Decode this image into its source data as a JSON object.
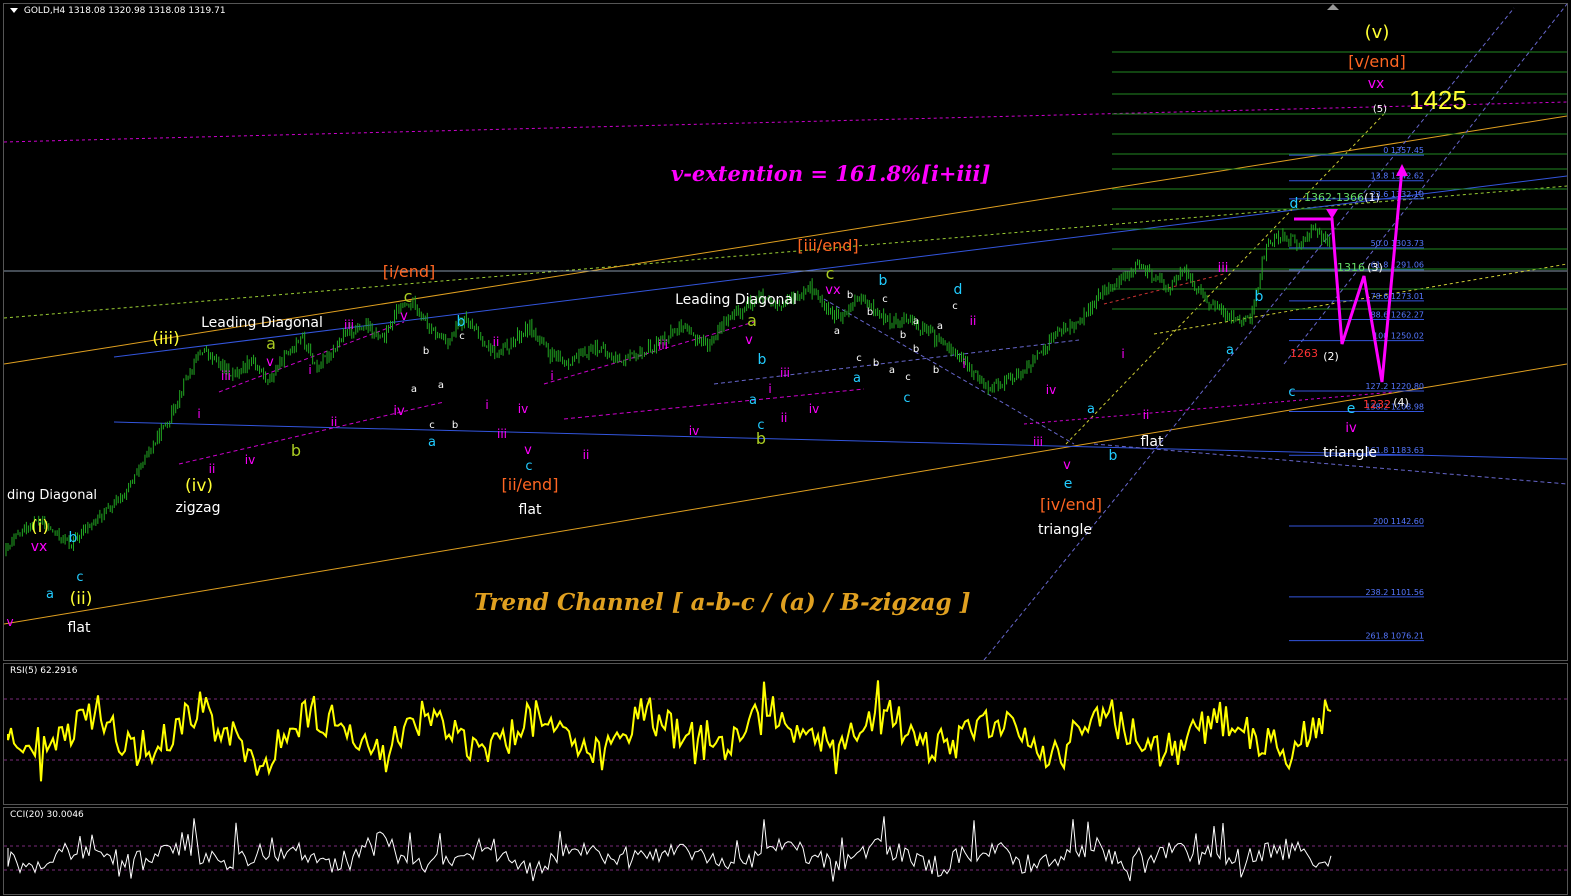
{
  "header": {
    "symbol": "GOLD,H4",
    "ohlc": "1318.08 1320.98 1318.08 1319.71"
  },
  "rsi": {
    "label": "RSI(5) 62.2916"
  },
  "cci": {
    "label": "CCI(20) 30.0046"
  },
  "annotations": {
    "v_extension": "v-extention = 161.8%[i+iii]",
    "trend_channel": "Trend Channel  [ a-b-c / (a) / B-zigzag ]",
    "target": "1425"
  },
  "chart_data": {
    "type": "line",
    "title": "",
    "xlabel": "",
    "ylabel": "",
    "ylim": [
      1065,
      1445
    ],
    "price_path": [
      [
        0,
        1128
      ],
      [
        2,
        1140
      ],
      [
        4,
        1146
      ],
      [
        6,
        1138
      ],
      [
        8,
        1132
      ],
      [
        10,
        1142
      ],
      [
        12,
        1150
      ],
      [
        14,
        1158
      ],
      [
        16,
        1172
      ],
      [
        18,
        1190
      ],
      [
        20,
        1205
      ],
      [
        22,
        1228
      ],
      [
        24,
        1245
      ],
      [
        26,
        1236
      ],
      [
        28,
        1230
      ],
      [
        30,
        1240
      ],
      [
        32,
        1226
      ],
      [
        34,
        1240
      ],
      [
        36,
        1253
      ],
      [
        38,
        1234
      ],
      [
        40,
        1245
      ],
      [
        42,
        1256
      ],
      [
        44,
        1258
      ],
      [
        46,
        1250
      ],
      [
        48,
        1268
      ],
      [
        50,
        1272
      ],
      [
        52,
        1255
      ],
      [
        54,
        1250
      ],
      [
        56,
        1262
      ],
      [
        58,
        1252
      ],
      [
        60,
        1241
      ],
      [
        62,
        1250
      ],
      [
        64,
        1258
      ],
      [
        66,
        1244
      ],
      [
        68,
        1237
      ],
      [
        70,
        1240
      ],
      [
        72,
        1247
      ],
      [
        74,
        1240
      ],
      [
        76,
        1239
      ],
      [
        78,
        1244
      ],
      [
        80,
        1250
      ],
      [
        82,
        1258
      ],
      [
        84,
        1252
      ],
      [
        86,
        1248
      ],
      [
        88,
        1262
      ],
      [
        90,
        1268
      ],
      [
        92,
        1276
      ],
      [
        94,
        1268
      ],
      [
        96,
        1274
      ],
      [
        98,
        1282
      ],
      [
        100,
        1270
      ],
      [
        102,
        1262
      ],
      [
        104,
        1275
      ],
      [
        106,
        1268
      ],
      [
        108,
        1260
      ],
      [
        110,
        1264
      ],
      [
        112,
        1257
      ],
      [
        114,
        1250
      ],
      [
        116,
        1243
      ],
      [
        118,
        1232
      ],
      [
        120,
        1224
      ],
      [
        122,
        1226
      ],
      [
        124,
        1232
      ],
      [
        126,
        1240
      ],
      [
        128,
        1254
      ],
      [
        130,
        1258
      ],
      [
        132,
        1266
      ],
      [
        134,
        1278
      ],
      [
        136,
        1284
      ],
      [
        138,
        1293
      ],
      [
        140,
        1288
      ],
      [
        142,
        1280
      ],
      [
        144,
        1291
      ],
      [
        146,
        1276
      ],
      [
        148,
        1268
      ],
      [
        150,
        1264
      ],
      [
        152,
        1261
      ],
      [
        154,
        1306
      ],
      [
        156,
        1312
      ],
      [
        158,
        1305
      ],
      [
        160,
        1316
      ],
      [
        162,
        1302
      ]
    ],
    "price_levels": [
      {
        "ratio": "0",
        "price": 1357.45
      },
      {
        "ratio": "13.8",
        "price": 1342.62
      },
      {
        "ratio": "23.6",
        "price": 1332.1
      },
      {
        "ratio": "50.0",
        "price": 1303.73
      },
      {
        "ratio": "61.8",
        "price": 1291.06
      },
      {
        "ratio": "78.6",
        "price": 1273.01
      },
      {
        "ratio": "88.6",
        "price": 1262.27
      },
      {
        "ratio": "100",
        "price": 1250.02
      },
      {
        "ratio": "127.2",
        "price": 1220.8
      },
      {
        "ratio": "138.2",
        "price": 1208.98
      },
      {
        "ratio": "161.8",
        "price": 1183.63
      },
      {
        "ratio": "200",
        "price": 1142.6
      },
      {
        "ratio": "238.2",
        "price": 1101.56
      },
      {
        "ratio": "261.8",
        "price": 1076.21
      }
    ],
    "price_level_labels": [
      "0 1357.45",
      "13.8 1342.62",
      "23.6 1332.10",
      "50.0 1303.73",
      "61.8 1291.06",
      "78.6 1273.01",
      "88.6 1262.27",
      "100 1250.02",
      "127.2 1220.80",
      "138.2 1208.98",
      "161.8 1183.63",
      "200 1142.60",
      "238.2 1101.56",
      "261.8 1076.21"
    ],
    "price_labels": {
      "zone_1362": "1362-1366",
      "level_1316": "1316",
      "level_1263": "1263",
      "level_1232": "1232",
      "proj_1": "(1)",
      "proj_2": "(2)",
      "proj_3": "(3)",
      "proj_4": "(4)",
      "proj_5": "(5)"
    },
    "wave_labels": {
      "ld_left": "ding Diagonal",
      "i_main": "(i)",
      "vx_1": "vx",
      "b_1": "b",
      "a_1": "a",
      "c_1": "c",
      "ii_main": "(ii)",
      "flat_1": "flat",
      "v_left": "v",
      "iii_main": "(iii)",
      "iv_main": "(iv)",
      "zigzag": "zigzag",
      "i_2": "i",
      "ii_2": "ii",
      "iii_2": "iii",
      "iv_2": "iv",
      "v_2": "v",
      "a_2": "a",
      "b_2": "b",
      "ld1": "Leading Diagonal",
      "i_3": "i",
      "ii_3": "ii",
      "iii_3": "iii",
      "iv_3": "iv",
      "i_end": "[i/end]",
      "c_3": "c",
      "v_3": "v",
      "b_s1": "b",
      "a_s1": "a",
      "c_s1": "c",
      "b_s2": "b",
      "a_s2": "a",
      "c_s2": "c",
      "b_cyan_1": "b",
      "a_cyan_1": "a",
      "i_4": "i",
      "ii_4": "ii",
      "iii_4": "iii",
      "iv_4": "iv",
      "v_4": "v",
      "c_4": "c",
      "ii_end": "[ii/end]",
      "flat_2": "flat",
      "i_5": "i",
      "ii_5": "ii",
      "iii_5": "iii",
      "iv_5": "iv",
      "v_5": "v",
      "ld2": "Leading Diagonal",
      "a_5": "a",
      "b_5": "b",
      "c_5": "c",
      "a_y": "a",
      "b_y": "b",
      "i_6": "i",
      "ii_6": "ii",
      "iii_6": "iii",
      "iv_6": "iv",
      "iii_end": "[iii/end]",
      "c_top": "c",
      "vx_top": "vx",
      "b_top": "b",
      "a_t1": "a",
      "b_t1": "b",
      "c_t1": "c",
      "b_t2": "b",
      "c_t2": "c",
      "a_t2": "a",
      "b_t3": "b",
      "a_t3": "a",
      "c_t3": "c",
      "b_t4": "b",
      "a_cyan_t": "a",
      "c_cyan_t": "c",
      "b_cyan_t": "b",
      "d_cyan": "d",
      "c_d": "c",
      "a_d": "a",
      "b_d": "b",
      "i_7": "i",
      "ii_7": "ii",
      "iii_7": "iii",
      "iv_7": "iv",
      "v_7": "v",
      "e_1": "e",
      "iv_end": "[iv/end]",
      "triangle_1": "triangle",
      "a_8": "a",
      "b_8": "b",
      "i_8": "i",
      "ii_8": "ii",
      "flat_3": "flat",
      "iii_8": "iii",
      "a_9": "a",
      "b_9": "b",
      "d_9": "d",
      "c_9": "c",
      "e_9": "e",
      "iv_9": "iv",
      "triangle_2": "triangle",
      "v_top": "(v)",
      "v_end": "[v/end]",
      "vx_end": "vx"
    }
  },
  "colors": {
    "candles": "#22aa22",
    "rsi": "#ffff00",
    "cci": "#ffffff",
    "magenta": "#ff00ff",
    "cyan": "#22ccff",
    "yellow": "#ffff33",
    "orange": "#ff6622",
    "olive": "#aacc22",
    "white": "#ffffff",
    "channel_orange": "#e0a020",
    "channel_blue": "#3355dd"
  }
}
